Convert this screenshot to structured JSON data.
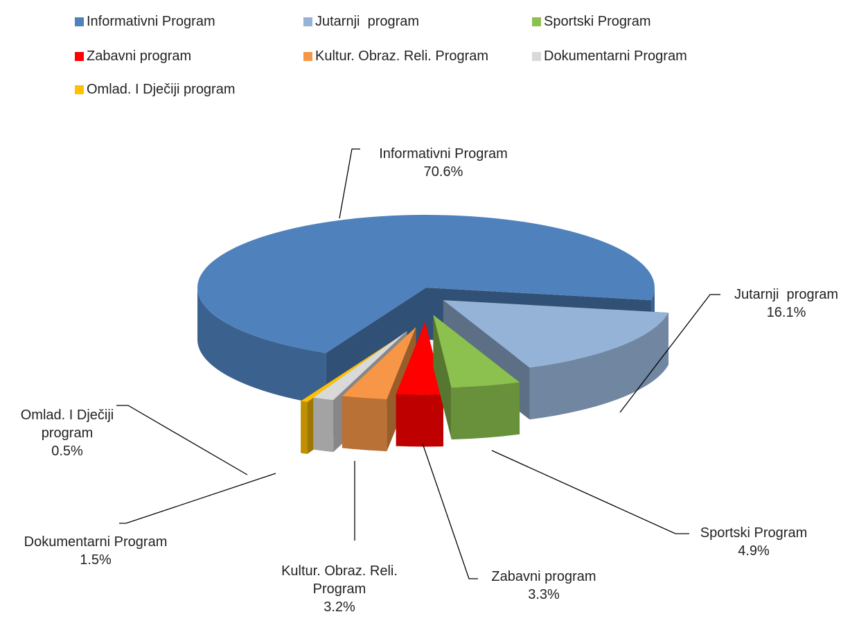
{
  "chart_data": {
    "type": "pie3d",
    "categories": [
      "Informativni Program",
      "Jutarnji  program",
      "Sportski Program",
      "Zabavni program",
      "Kultur. Obraz. Reli. Program",
      "Dokumentarni Program",
      "Omlad. I Dječiji program"
    ],
    "values": [
      70.6,
      16.1,
      4.9,
      3.3,
      3.2,
      1.5,
      0.5
    ],
    "value_labels": [
      "70.6%",
      "16.1%",
      "4.9%",
      "3.3%",
      "3.2%",
      "1.5%",
      "0.5%"
    ],
    "colors": [
      "#4f81bd",
      "#95b3d7",
      "#8cc04f",
      "#ff0000",
      "#f79646",
      "#d9d9d9",
      "#ffc000"
    ],
    "legend": "top"
  }
}
